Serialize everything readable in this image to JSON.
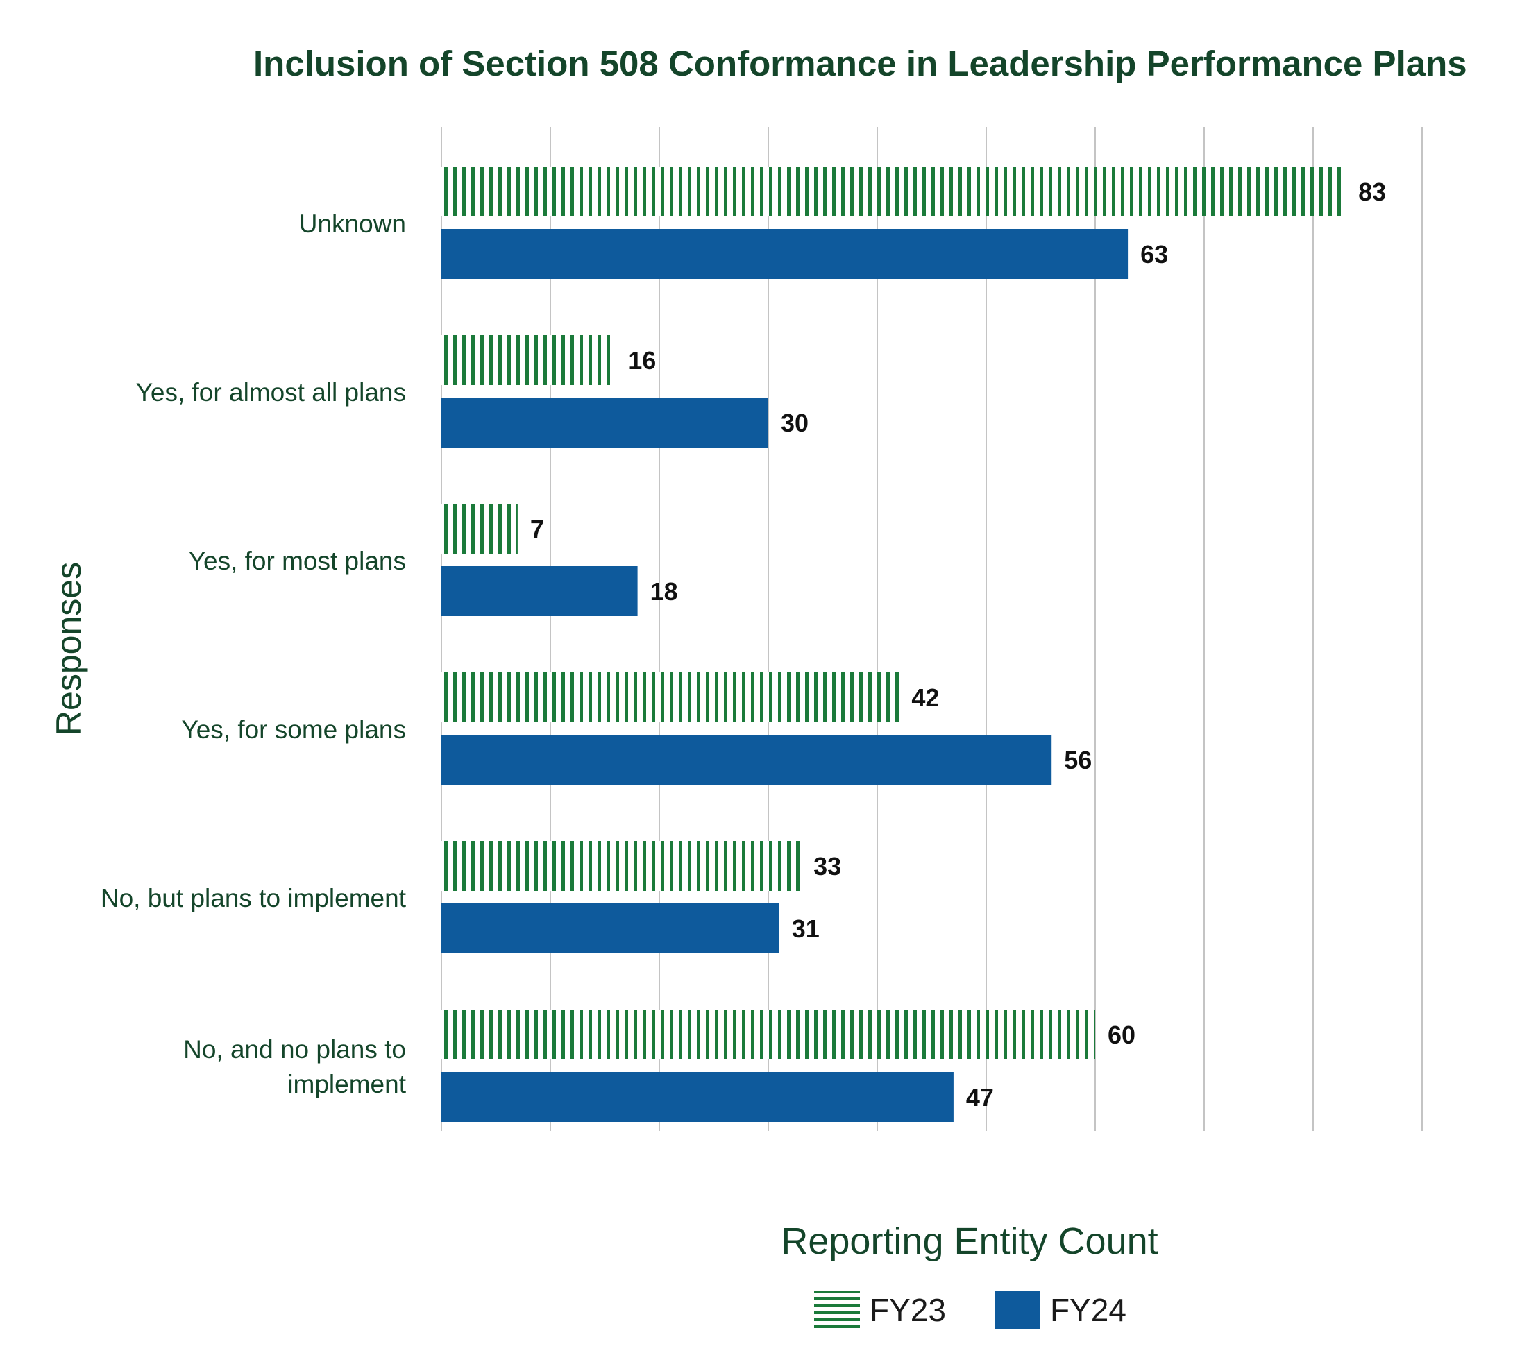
{
  "chart_data": {
    "type": "bar",
    "orientation": "horizontal",
    "title": "Inclusion of Section 508 Conformance in Leadership Performance Plans",
    "xlabel": "Reporting Entity Count",
    "ylabel": "Responses",
    "categories": [
      "Unknown",
      "Yes, for almost all plans",
      "Yes, for most plans",
      "Yes, for some plans",
      "No, but plans to implement",
      "No, and no plans to implement"
    ],
    "series": [
      {
        "name": "FY23",
        "values": [
          83,
          16,
          7,
          42,
          33,
          60
        ],
        "color": "#1b7a3a",
        "pattern": "vertical-stripes"
      },
      {
        "name": "FY24",
        "values": [
          63,
          30,
          18,
          56,
          31,
          47
        ],
        "color": "#0e5a9c",
        "pattern": "solid"
      }
    ],
    "xlim": [
      0,
      90
    ],
    "grid": true,
    "legend_position": "bottom-center",
    "data_labels": true
  }
}
